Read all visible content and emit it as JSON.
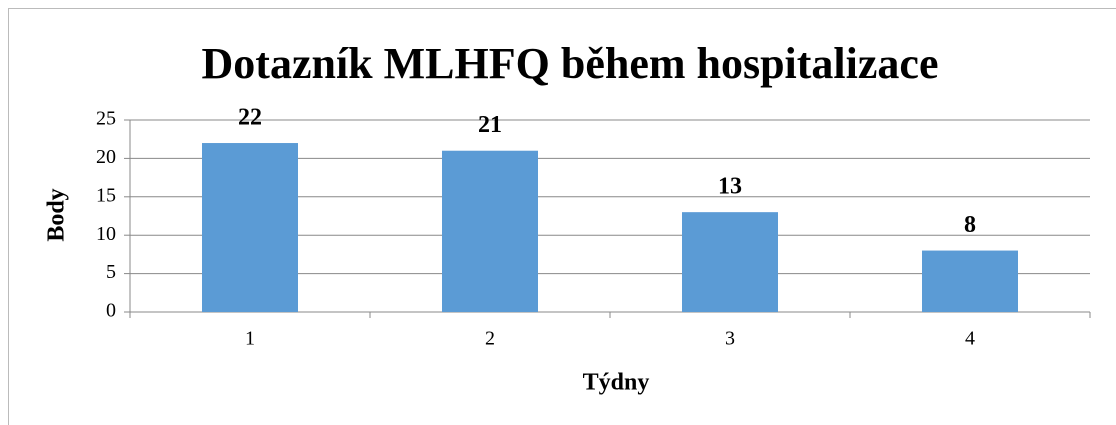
{
  "chart_data": {
    "type": "bar",
    "title": "Dotazník MLHFQ během hospitalizace",
    "categories": [
      "1",
      "2",
      "3",
      "4"
    ],
    "values": [
      22,
      21,
      13,
      8
    ],
    "color": "#5b9bd5",
    "xlabel": "Týdny",
    "ylabel": "Body",
    "ylim": [
      0,
      25
    ],
    "yticks": [
      0,
      5,
      10,
      15,
      20,
      25
    ],
    "grid": true
  }
}
